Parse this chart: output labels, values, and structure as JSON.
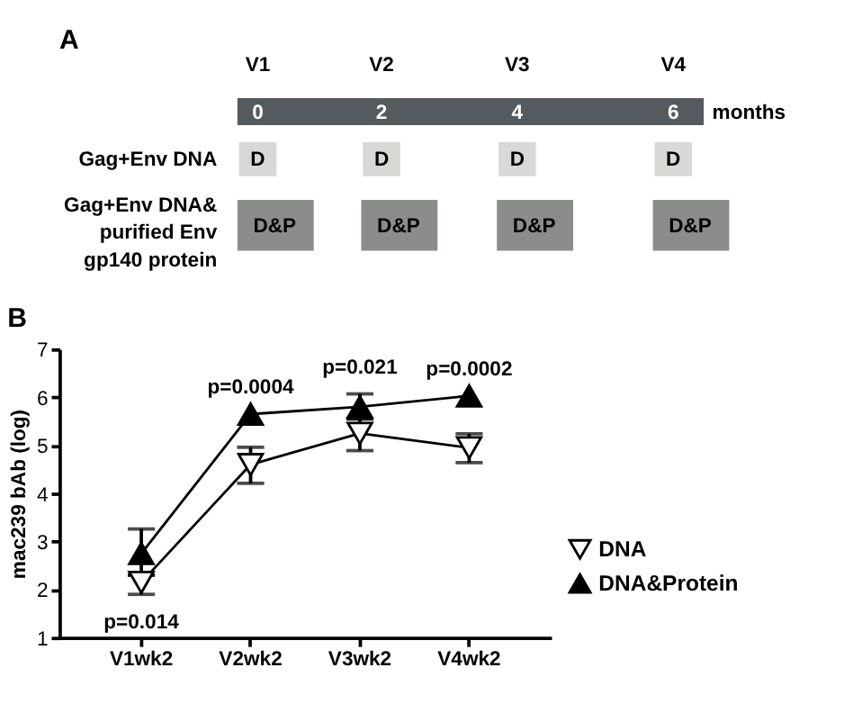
{
  "chart_data": [
    {
      "type": "other",
      "title": "A",
      "annotations": [
        "V1",
        "V2",
        "V3",
        "V4",
        "0",
        "2",
        "4",
        "6",
        "months",
        "Gag+Env DNA",
        "D",
        "D",
        "D",
        "D",
        "Gag+Env DNA&\npurified Env\ngp140 protein",
        "D&P",
        "D&P",
        "D&P",
        "D&P"
      ]
    },
    {
      "type": "line",
      "title": "B",
      "ylabel": "mac239  bAb (log)",
      "categories": [
        "V1wk2",
        "V2wk2",
        "V3wk2",
        "V4wk2"
      ],
      "ylim": [
        1,
        7
      ],
      "yticks": [
        1,
        2,
        3,
        4,
        5,
        6,
        7
      ],
      "legend": "right",
      "marker": "triangle",
      "grid": false,
      "series": [
        {
          "name": "DNA",
          "color": "#000000",
          "values": [
            2.15,
            4.6,
            5.25,
            4.95
          ],
          "errors": [
            [
              1.9,
              2.3
            ],
            [
              4.21,
              4.96
            ],
            [
              4.89,
              5.55
            ],
            [
              4.64,
              5.24
            ]
          ]
        },
        {
          "name": "DNA&Protein",
          "color": "#000000",
          "values": [
            2.75,
            5.65,
            5.8,
            6.03
          ],
          "errors": [
            [
              2.3,
              3.26
            ],
            null,
            [
              5.55,
              6.07
            ],
            null
          ]
        }
      ],
      "annotations": [
        "p=0.014",
        "p=0.0004",
        "p=0.021",
        "p=0.0002"
      ]
    }
  ]
}
